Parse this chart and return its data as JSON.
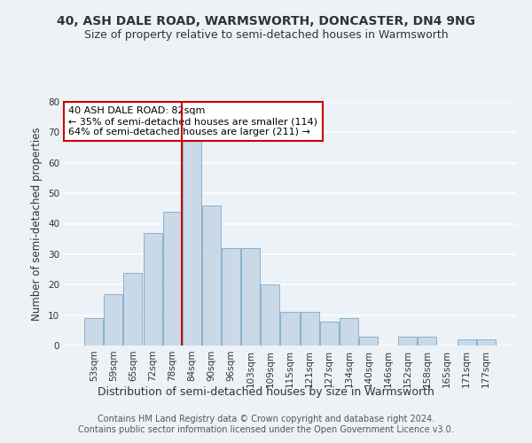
{
  "title": "40, ASH DALE ROAD, WARMSWORTH, DONCASTER, DN4 9NG",
  "subtitle": "Size of property relative to semi-detached houses in Warmsworth",
  "xlabel": "Distribution of semi-detached houses by size in Warmsworth",
  "ylabel": "Number of semi-detached properties",
  "footer_line1": "Contains HM Land Registry data © Crown copyright and database right 2024.",
  "footer_line2": "Contains public sector information licensed under the Open Government Licence v3.0.",
  "bins": [
    "53sqm",
    "59sqm",
    "65sqm",
    "72sqm",
    "78sqm",
    "84sqm",
    "90sqm",
    "96sqm",
    "103sqm",
    "109sqm",
    "115sqm",
    "121sqm",
    "127sqm",
    "134sqm",
    "140sqm",
    "146sqm",
    "152sqm",
    "158sqm",
    "165sqm",
    "171sqm",
    "177sqm"
  ],
  "values": [
    9,
    17,
    24,
    37,
    44,
    68,
    46,
    32,
    32,
    20,
    11,
    11,
    8,
    9,
    3,
    0,
    3,
    3,
    0,
    2,
    2
  ],
  "bar_color": "#c9d9e8",
  "bar_edge_color": "#7aaac8",
  "vline_index": 5,
  "vline_color": "#cc0000",
  "annotation_title": "40 ASH DALE ROAD: 82sqm",
  "annotation_line1": "← 35% of semi-detached houses are smaller (114)",
  "annotation_line2": "64% of semi-detached houses are larger (211) →",
  "annotation_box_color": "#cc0000",
  "ylim": [
    0,
    80
  ],
  "yticks": [
    0,
    10,
    20,
    30,
    40,
    50,
    60,
    70,
    80
  ],
  "background_color": "#edf2f7",
  "grid_color": "#ffffff",
  "title_fontsize": 10,
  "subtitle_fontsize": 9,
  "axis_label_fontsize": 8.5,
  "tick_fontsize": 7.5,
  "annotation_fontsize": 8,
  "footer_fontsize": 7
}
